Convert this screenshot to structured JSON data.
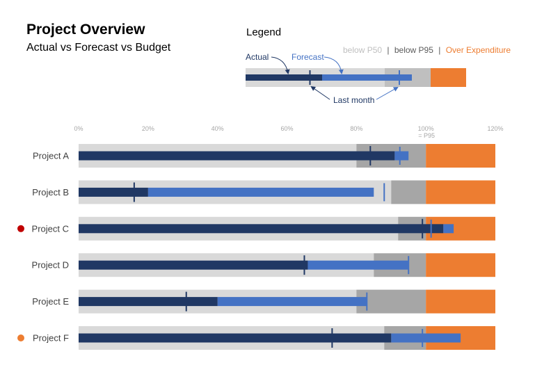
{
  "title": "Project Overview",
  "subtitle": "Actual vs Forecast vs Budget",
  "legend": {
    "title": "Legend",
    "below_p50": "below P50",
    "below_p95": "below P95",
    "over": "Over Expenditure",
    "separator": "|",
    "actual": "Actual",
    "forecast": "Forecast",
    "last_month": "Last month"
  },
  "colors": {
    "band_p50": "#d9d9d9",
    "band_p95": "#a6a6a6",
    "over": "#ed7d31",
    "actual": "#203864",
    "forecast": "#4472c4",
    "legend_p50_text": "#bfbfbf",
    "legend_p95_text": "#595959",
    "flag_red": "#c00000",
    "flag_orange": "#ed7d31"
  },
  "chart_data": {
    "type": "bullet",
    "xlim": [
      0,
      120
    ],
    "ticks": [
      "0%",
      "20%",
      "40%",
      "60%",
      "80%",
      "100%",
      "120%"
    ],
    "tick_values": [
      0,
      20,
      40,
      60,
      80,
      100,
      120
    ],
    "p95_note": "= P95",
    "p95": 100,
    "categories": [
      "Project A",
      "Project B",
      "Project C",
      "Project D",
      "Project E",
      "Project F"
    ],
    "flags": [
      null,
      null,
      "red",
      null,
      null,
      "orange"
    ],
    "p50": [
      80,
      90,
      92,
      85,
      80,
      88
    ],
    "actual": [
      91,
      20,
      105,
      66,
      40,
      90
    ],
    "forecast": [
      95,
      85,
      108,
      95,
      83,
      110
    ],
    "last_month_actual": [
      84,
      16,
      99,
      65,
      31,
      73
    ],
    "last_month_forecast": [
      92.5,
      88,
      101.5,
      95,
      83,
      99
    ]
  }
}
